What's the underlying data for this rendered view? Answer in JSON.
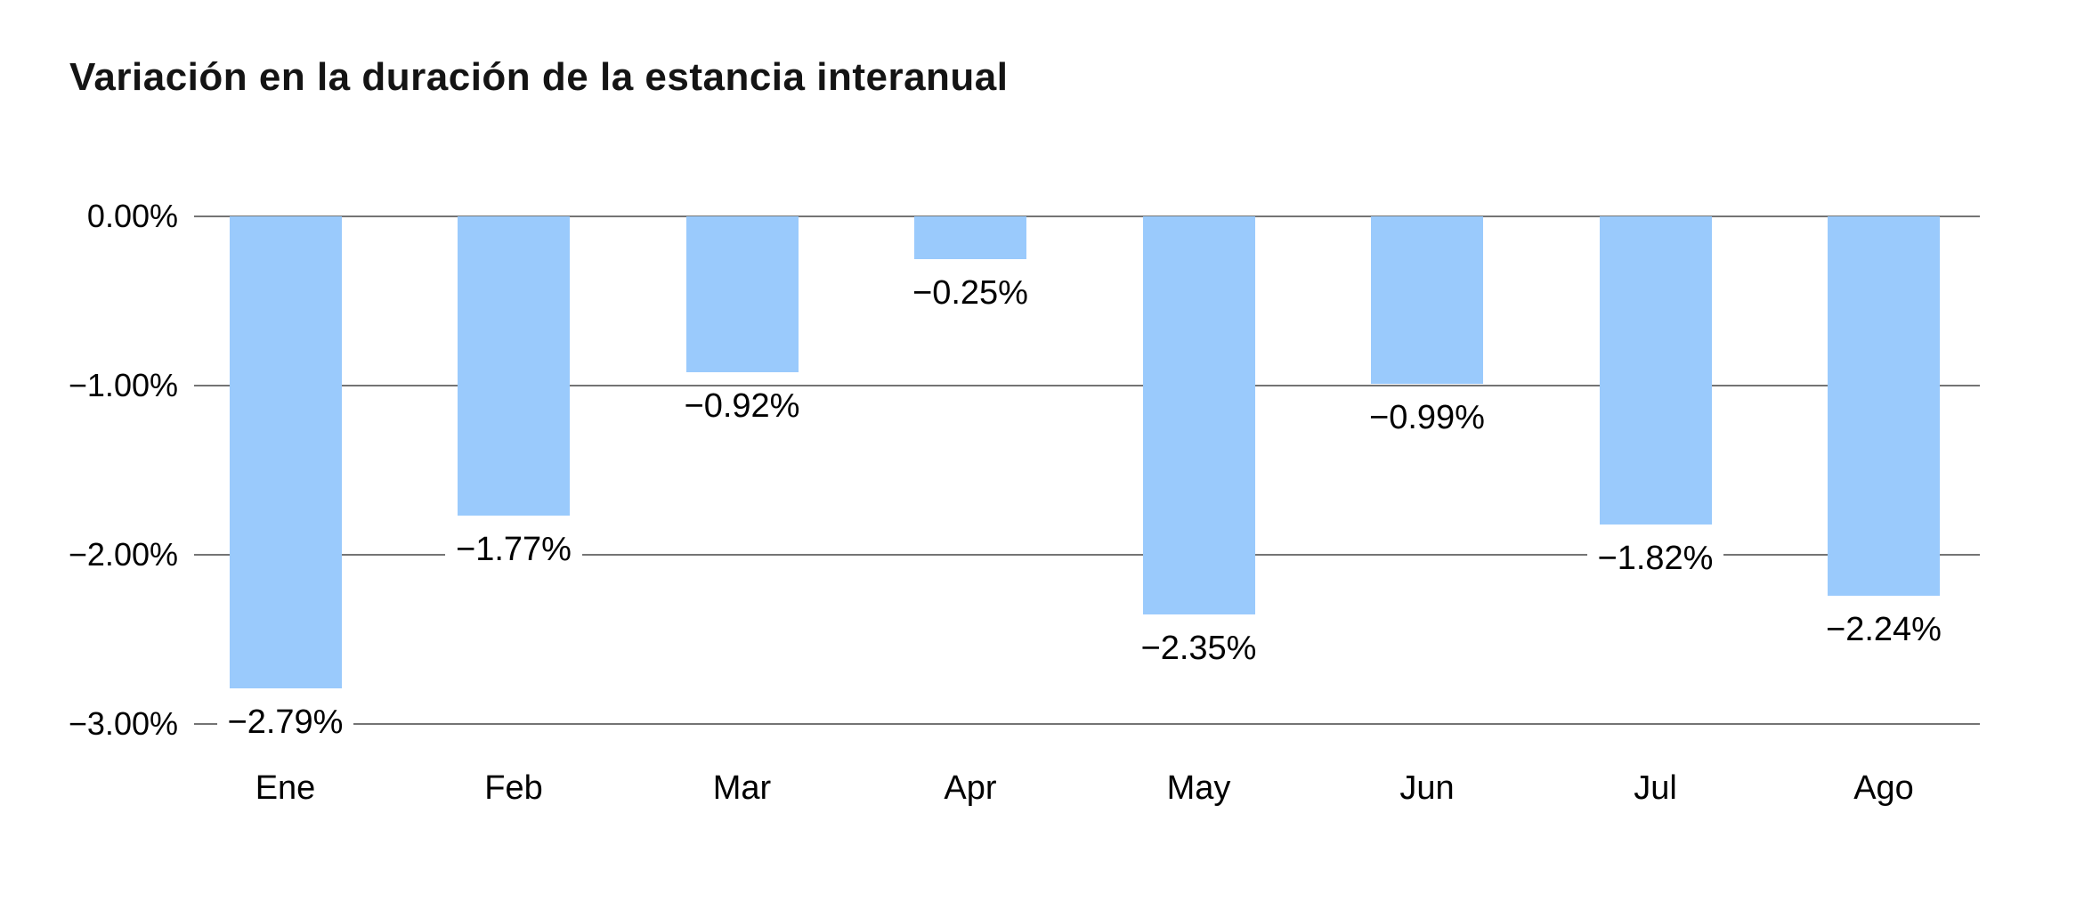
{
  "chart_data": {
    "type": "bar",
    "title": "Variación en la duración de la estancia interanual",
    "categories": [
      "Ene",
      "Feb",
      "Mar",
      "Apr",
      "May",
      "Jun",
      "Jul",
      "Ago"
    ],
    "values": [
      -2.79,
      -1.77,
      -0.92,
      -0.25,
      -2.35,
      -0.99,
      -1.82,
      -2.24
    ],
    "value_labels": [
      "−2.79%",
      "−1.77%",
      "−0.92%",
      "−0.25%",
      "−2.35%",
      "−0.99%",
      "−1.82%",
      "−2.24%"
    ],
    "y_ticks": [
      {
        "value": 0,
        "label": "0.00%"
      },
      {
        "value": -1,
        "label": "−1.00%"
      },
      {
        "value": -2,
        "label": "−2.00%"
      },
      {
        "value": -3,
        "label": "−3.00%"
      }
    ],
    "ylim": [
      0,
      -3
    ],
    "xlabel": "",
    "ylabel": "",
    "grid": true,
    "legend": false,
    "colors": {
      "bar": "#9ACAFC",
      "gridline": "#747474",
      "text": "#000000",
      "background": "#FFFFFF"
    }
  }
}
